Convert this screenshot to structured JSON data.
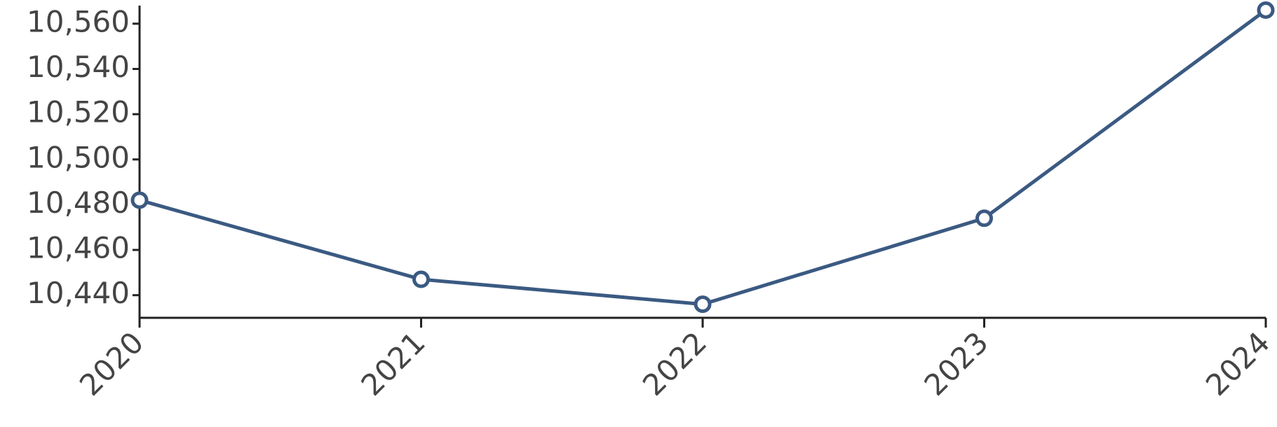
{
  "chart_data": {
    "type": "line",
    "title": "",
    "xlabel": "",
    "ylabel": "",
    "categories": [
      "2020",
      "2021",
      "2022",
      "2023",
      "2024"
    ],
    "series": [
      {
        "values": [
          10482,
          10447,
          10436,
          10474,
          10566
        ],
        "color": "#3b5a82"
      }
    ],
    "ylim": [
      10430,
      10568
    ],
    "y_ticks": [
      10440,
      10460,
      10480,
      10500,
      10520,
      10540,
      10560
    ],
    "y_tick_labels": [
      "10,440",
      "10,460",
      "10,480",
      "10,500",
      "10,520",
      "10,540",
      "10,560"
    ],
    "grid": false,
    "legend": "none",
    "x_label_rotation_deg": -45
  }
}
